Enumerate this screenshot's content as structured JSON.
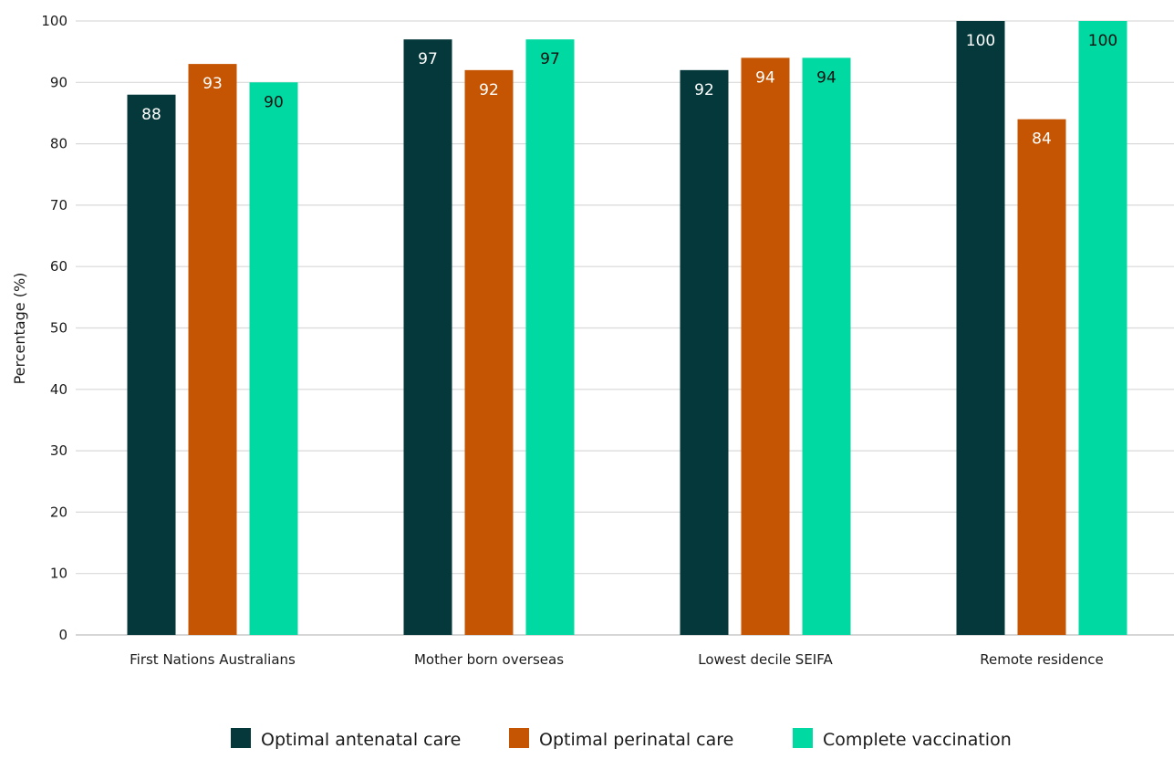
{
  "chart_data": {
    "type": "bar",
    "title": "",
    "xlabel": "",
    "ylabel": "Percentage (%)",
    "ylim": [
      0,
      100
    ],
    "yticks": [
      0,
      10,
      20,
      30,
      40,
      50,
      60,
      70,
      80,
      90,
      100
    ],
    "grid": true,
    "legend_position": "bottom",
    "categories": [
      "First Nations Australians",
      "Mother born overseas",
      "Lowest decile SEIFA",
      "Remote residence"
    ],
    "series": [
      {
        "name": "Optimal antenatal care",
        "color": "#05383a",
        "label_color": "#ffffff",
        "values": [
          88,
          97,
          92,
          100
        ]
      },
      {
        "name": "Optimal perinatal care",
        "color": "#c55502",
        "label_color": "#ffffff",
        "values": [
          93,
          92,
          94,
          84
        ]
      },
      {
        "name": "Complete vaccination",
        "color": "#00d9a1",
        "label_color": "#111111",
        "values": [
          90,
          97,
          94,
          100
        ]
      }
    ]
  }
}
